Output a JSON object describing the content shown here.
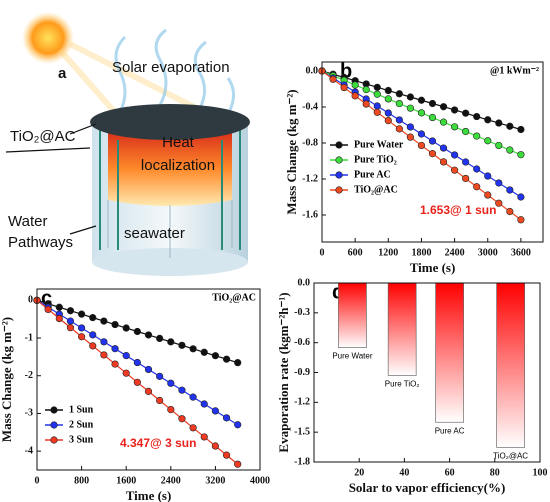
{
  "illustration": {
    "label": "a",
    "solar": "Solar evaporation",
    "layer": "TiO₂@AC",
    "heat": [
      "Heat",
      "localization"
    ],
    "water": [
      "Water",
      "Pathways"
    ],
    "seawater": "seawater"
  },
  "chart_data": [
    {
      "type": "line",
      "label": "b",
      "note": "@1 kWm⁻²",
      "annotation": "1.653@ 1 sun",
      "xlabel": "Time (s)",
      "ylabel": "Mass Change (kg m⁻²)",
      "x": [
        0,
        200,
        400,
        600,
        800,
        1000,
        1200,
        1400,
        1600,
        1800,
        2000,
        2200,
        2400,
        2600,
        2800,
        3000,
        3200,
        3400,
        3600
      ],
      "xlim": [
        0,
        4000
      ],
      "xticks": [
        0,
        600,
        1200,
        1800,
        2400,
        3000,
        3600
      ],
      "ylim": [
        -1.9,
        0.1
      ],
      "yticks": [
        {
          "value": 0,
          "label": "0.0"
        },
        -0.4,
        -0.8,
        -1.2,
        -1.6
      ],
      "legend": "lower left",
      "series": [
        {
          "name": "Pure Water",
          "color": "#111111",
          "values": [
            0,
            -0.036,
            -0.072,
            -0.108,
            -0.144,
            -0.181,
            -0.217,
            -0.253,
            -0.289,
            -0.325,
            -0.361,
            -0.397,
            -0.433,
            -0.469,
            -0.506,
            -0.542,
            -0.578,
            -0.614,
            -0.65
          ]
        },
        {
          "name": "Pure TiO₂",
          "color": "#3ddc3d",
          "values": [
            0,
            -0.052,
            -0.103,
            -0.155,
            -0.207,
            -0.258,
            -0.31,
            -0.362,
            -0.413,
            -0.465,
            -0.517,
            -0.568,
            -0.62,
            -0.672,
            -0.723,
            -0.775,
            -0.827,
            -0.878,
            -0.93
          ]
        },
        {
          "name": "Pure AC",
          "color": "#2233ee",
          "values": [
            0,
            -0.078,
            -0.156,
            -0.233,
            -0.311,
            -0.389,
            -0.467,
            -0.544,
            -0.622,
            -0.7,
            -0.778,
            -0.856,
            -0.933,
            -1.011,
            -1.089,
            -1.167,
            -1.244,
            -1.322,
            -1.4
          ]
        },
        {
          "name": "TiO₂@AC",
          "color": "#ee4a22",
          "values": [
            0,
            -0.092,
            -0.184,
            -0.276,
            -0.367,
            -0.459,
            -0.551,
            -0.643,
            -0.735,
            -0.827,
            -0.918,
            -1.01,
            -1.102,
            -1.194,
            -1.286,
            -1.378,
            -1.469,
            -1.561,
            -1.653
          ]
        }
      ]
    },
    {
      "type": "line",
      "label": "c",
      "note": "TiO₂@AC",
      "annotation": "4.347@ 3 sun",
      "xlabel": "Time (s)",
      "ylabel": "Mass Change (kg m⁻²)",
      "x": [
        0,
        200,
        400,
        600,
        800,
        1000,
        1200,
        1400,
        1600,
        1800,
        2000,
        2200,
        2400,
        2600,
        2800,
        3000,
        3200,
        3400,
        3600
      ],
      "xlim": [
        0,
        4000
      ],
      "xticks": [
        0,
        800,
        1600,
        2400,
        3200,
        4000
      ],
      "ylim": [
        -4.5,
        0.3
      ],
      "yticks": [
        0,
        -1,
        -2,
        -3,
        -4
      ],
      "legend": "lower left",
      "series": [
        {
          "name": "1 Sun",
          "color": "#111111",
          "values": [
            0,
            -0.092,
            -0.184,
            -0.276,
            -0.367,
            -0.459,
            -0.551,
            -0.643,
            -0.735,
            -0.827,
            -0.918,
            -1.01,
            -1.102,
            -1.194,
            -1.286,
            -1.378,
            -1.469,
            -1.561,
            -1.653
          ]
        },
        {
          "name": "2 Sun",
          "color": "#2233ee",
          "values": [
            0,
            -0.183,
            -0.367,
            -0.55,
            -0.733,
            -0.917,
            -1.1,
            -1.283,
            -1.467,
            -1.65,
            -1.833,
            -2.017,
            -2.2,
            -2.383,
            -2.567,
            -2.75,
            -2.933,
            -3.117,
            -3.3
          ]
        },
        {
          "name": "3 Sun",
          "color": "#ee3a22",
          "values": [
            0,
            -0.242,
            -0.483,
            -0.725,
            -0.966,
            -1.208,
            -1.449,
            -1.691,
            -1.932,
            -2.174,
            -2.415,
            -2.657,
            -2.898,
            -3.14,
            -3.381,
            -3.623,
            -3.864,
            -4.106,
            -4.347
          ]
        }
      ]
    },
    {
      "type": "bar",
      "label": "d",
      "xlabel": "Solar to vapor efficiency(%)",
      "ylabel": "Evaporation rate (kgm⁻²h⁻¹)",
      "categories": [
        "Pure Water",
        "Pure TiO₂",
        "Pure AC",
        "TiO₂@AC"
      ],
      "x": [
        17,
        39,
        60,
        87
      ],
      "values": [
        -0.65,
        -0.93,
        -1.4,
        -1.653
      ],
      "color": "#ff0000",
      "xlim": [
        0,
        100
      ],
      "xticks": [
        20,
        40,
        60,
        80,
        100
      ],
      "ylim": [
        -1.8,
        0
      ],
      "yticks": [
        {
          "value": 0,
          "label": "0.0"
        },
        -0.3,
        -0.6,
        -0.9,
        -1.2,
        -1.5,
        -1.8
      ]
    }
  ]
}
